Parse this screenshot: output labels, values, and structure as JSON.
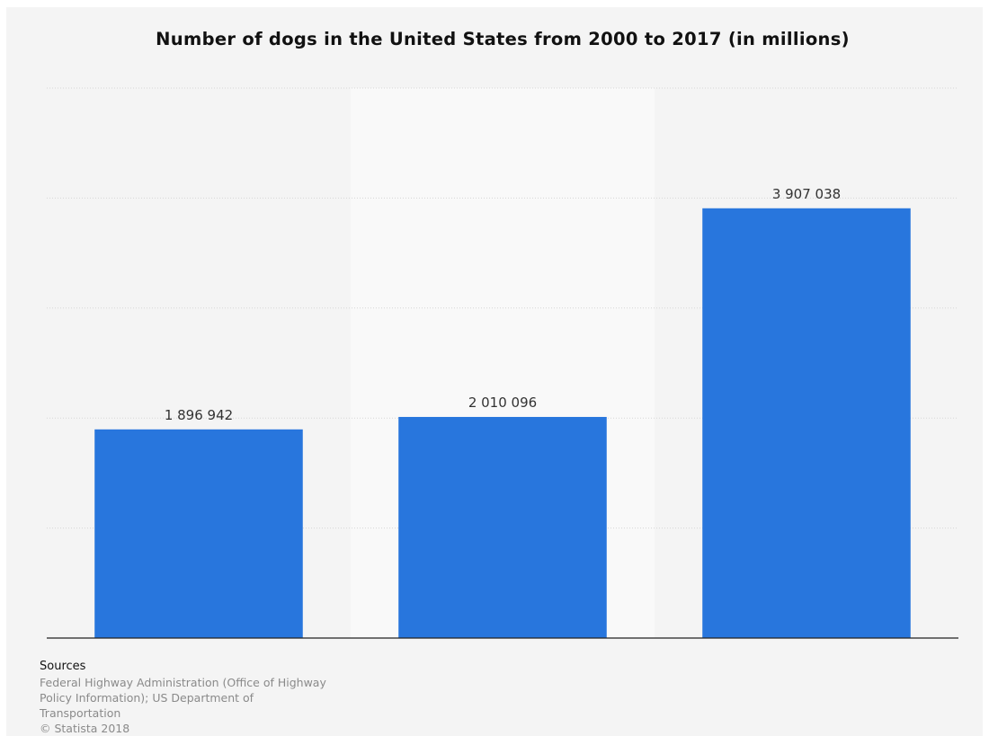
{
  "chart_data": {
    "type": "bar",
    "title": "Number of dogs in the United States from 2000 to 2017 (in millions)",
    "categories": [
      "",
      "",
      ""
    ],
    "values": [
      1896942,
      2010096,
      3907038
    ],
    "value_labels": [
      "1 896 942",
      "2 010 096",
      "3 907 038"
    ],
    "xlabel": "",
    "ylabel": "",
    "ylim": [
      0,
      5000000
    ],
    "grid": true,
    "legend": "none",
    "bar_color": "#2876dd",
    "highlight_band_color": "#f9f9f9",
    "gridline_color": "#d6d6d6",
    "axis_color": "#222222",
    "label_color": "#333333"
  },
  "sources": {
    "heading": "Sources",
    "text": "Federal Highway Administration (Office of Highway Policy Information); US Department of Transportation",
    "copyright": "© Statista 2018"
  }
}
